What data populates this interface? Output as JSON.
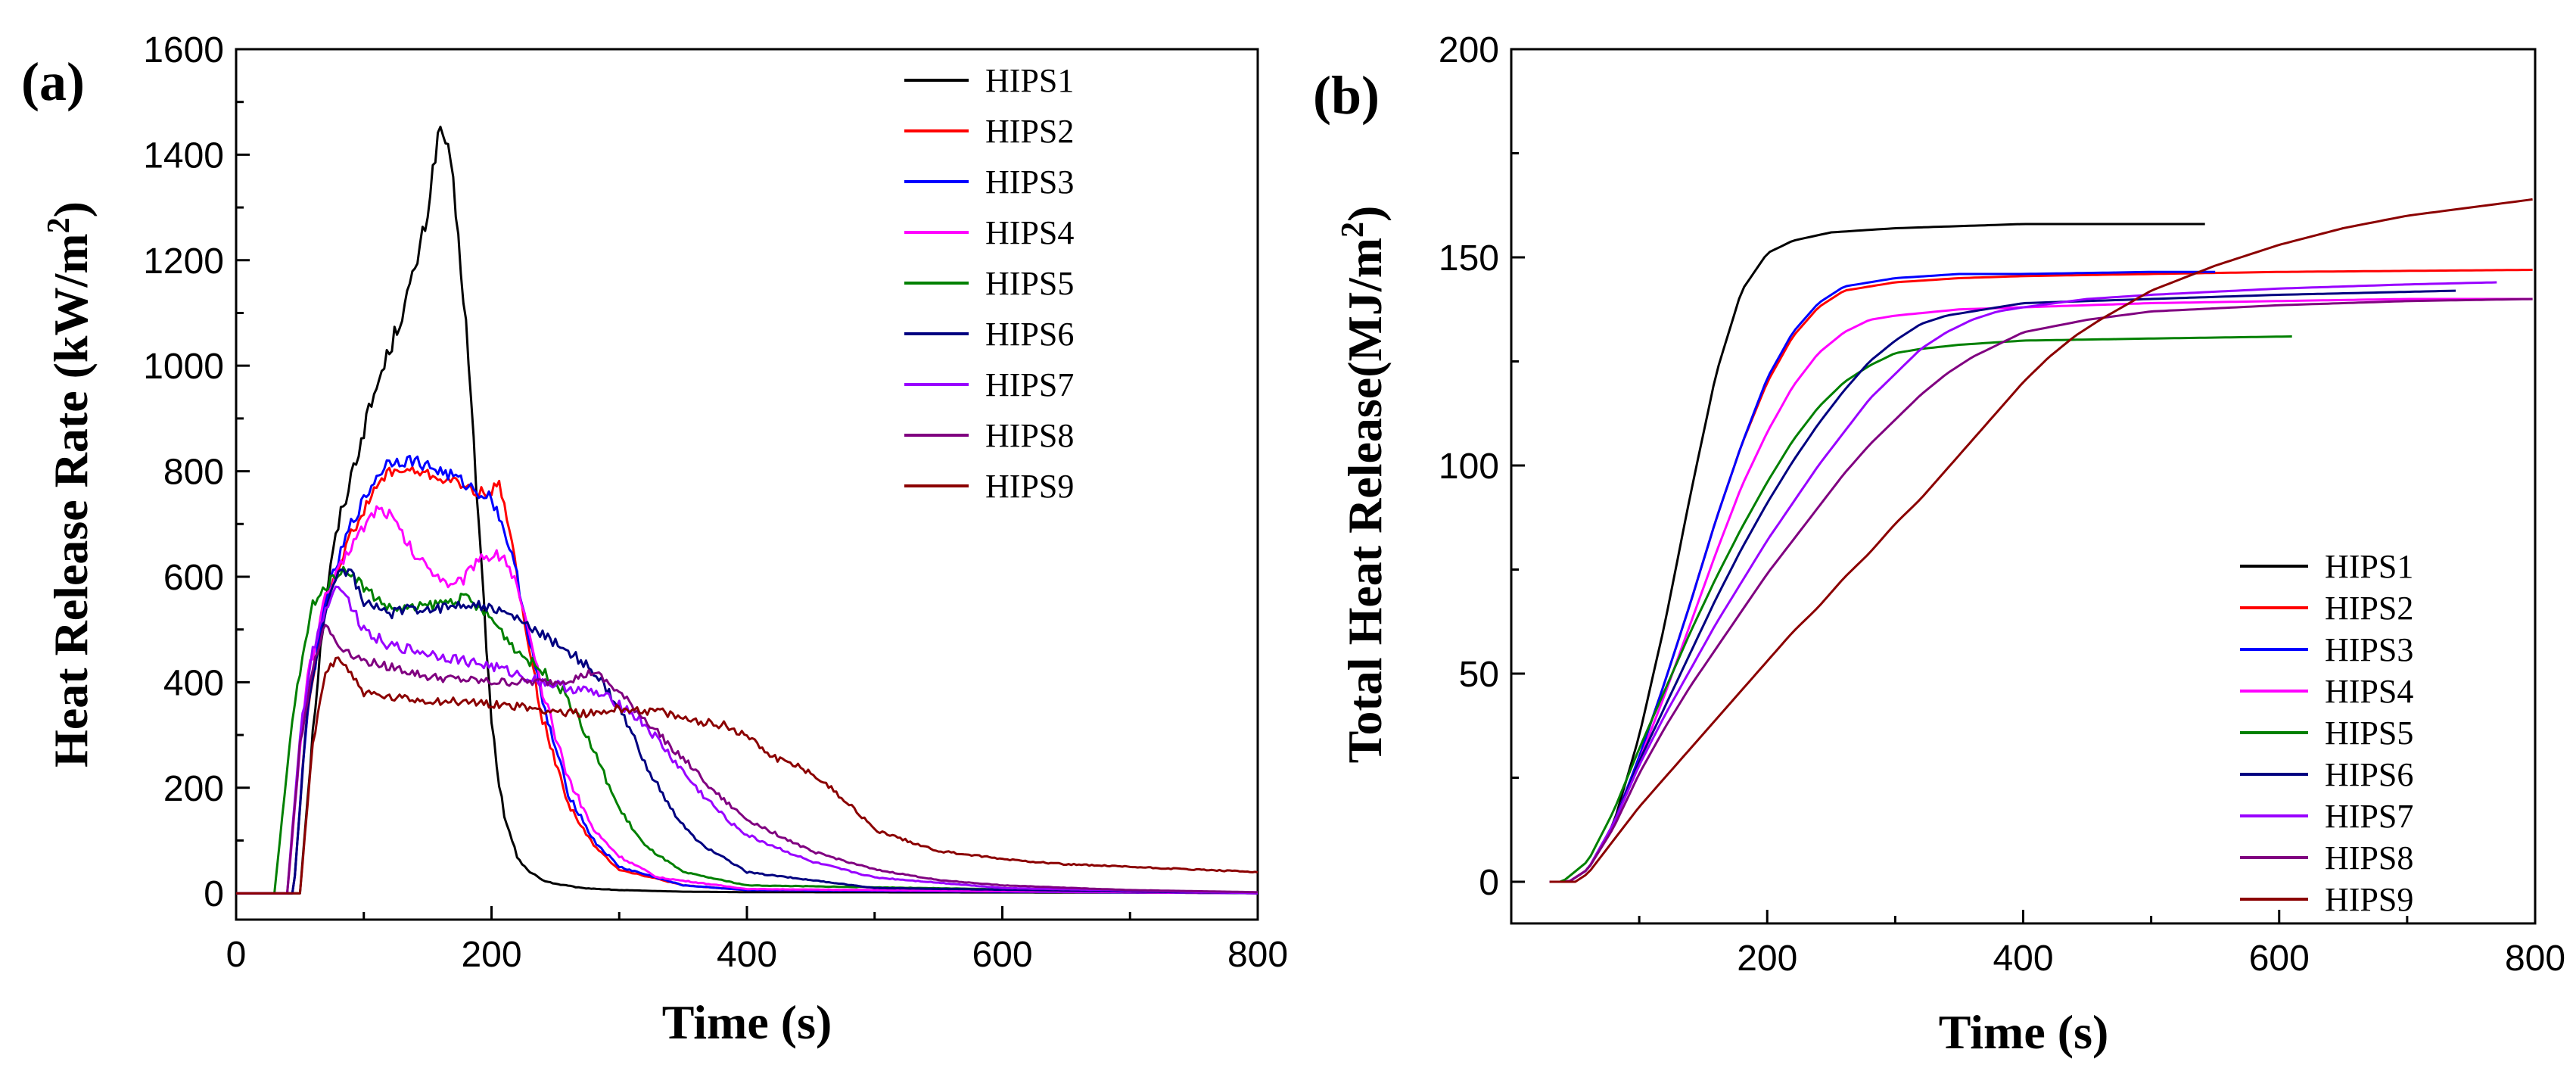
{
  "chart_data": [
    {
      "type": "line",
      "panel_label": "(a)",
      "xlabel": "Time (s)",
      "ylabel": "Heat Release Rate (kW/m",
      "ylabel_sup": "2",
      "ylabel_close": ")",
      "xlim": [
        0,
        800
      ],
      "ylim": [
        -50,
        1600
      ],
      "xticks": [
        0,
        200,
        400,
        600,
        800
      ],
      "yticks": [
        0,
        200,
        400,
        600,
        800,
        1000,
        1200,
        1400,
        1600
      ],
      "legend_position": "top-right",
      "series": [
        {
          "name": "HIPS1",
          "color": "#000000",
          "noise": 18,
          "x": [
            0,
            40,
            50,
            60,
            70,
            80,
            90,
            100,
            110,
            120,
            130,
            140,
            150,
            155,
            160,
            165,
            170,
            180,
            190,
            200,
            210,
            220,
            230,
            240,
            250,
            270,
            300,
            350,
            400,
            800
          ],
          "y": [
            0,
            0,
            0,
            310,
            560,
            700,
            790,
            880,
            960,
            1030,
            1100,
            1180,
            1290,
            1390,
            1450,
            1420,
            1340,
            1080,
            700,
            320,
            140,
            70,
            40,
            25,
            18,
            10,
            6,
            3,
            2,
            1
          ]
        },
        {
          "name": "HIPS2",
          "color": "#ff0000",
          "noise": 10,
          "x": [
            0,
            45,
            55,
            70,
            90,
            110,
            120,
            140,
            170,
            190,
            200,
            205,
            210,
            215,
            225,
            240,
            260,
            280,
            300,
            350,
            400,
            800
          ],
          "y": [
            0,
            0,
            330,
            560,
            680,
            770,
            800,
            800,
            780,
            760,
            760,
            780,
            740,
            680,
            520,
            330,
            170,
            90,
            45,
            15,
            6,
            0
          ]
        },
        {
          "name": "HIPS3",
          "color": "#0000ff",
          "noise": 12,
          "x": [
            0,
            45,
            55,
            70,
            90,
            110,
            120,
            140,
            170,
            190,
            200,
            210,
            220,
            230,
            240,
            260,
            280,
            300,
            350,
            400,
            800
          ],
          "y": [
            0,
            0,
            330,
            560,
            700,
            790,
            820,
            820,
            790,
            760,
            750,
            690,
            600,
            480,
            360,
            190,
            100,
            50,
            15,
            6,
            0
          ]
        },
        {
          "name": "HIPS4",
          "color": "#ff00ff",
          "noise": 12,
          "x": [
            0,
            40,
            55,
            70,
            90,
            110,
            120,
            140,
            160,
            170,
            180,
            190,
            200,
            210,
            220,
            230,
            240,
            260,
            280,
            300,
            330,
            400,
            800
          ],
          "y": [
            0,
            0,
            400,
            560,
            660,
            730,
            720,
            640,
            600,
            580,
            600,
            640,
            640,
            640,
            580,
            480,
            380,
            220,
            120,
            70,
            30,
            8,
            0
          ]
        },
        {
          "name": "HIPS5",
          "color": "#008000",
          "noise": 10,
          "x": [
            0,
            30,
            45,
            60,
            80,
            90,
            100,
            120,
            140,
            160,
            180,
            200,
            220,
            240,
            250,
            260,
            280,
            300,
            320,
            350,
            400,
            800
          ],
          "y": [
            0,
            0,
            350,
            550,
            610,
            610,
            580,
            540,
            540,
            550,
            560,
            520,
            460,
            420,
            400,
            370,
            270,
            160,
            90,
            40,
            15,
            0
          ]
        },
        {
          "name": "HIPS6",
          "color": "#000080",
          "noise": 10,
          "x": [
            0,
            45,
            55,
            70,
            80,
            90,
            100,
            120,
            140,
            160,
            180,
            200,
            220,
            240,
            260,
            280,
            300,
            320,
            340,
            360,
            400,
            500,
            800
          ],
          "y": [
            0,
            0,
            330,
            540,
            610,
            610,
            550,
            530,
            540,
            540,
            550,
            540,
            520,
            490,
            460,
            420,
            350,
            250,
            160,
            100,
            40,
            10,
            0
          ]
        },
        {
          "name": "HIPS7",
          "color": "#9900ff",
          "noise": 10,
          "x": [
            0,
            40,
            50,
            60,
            70,
            80,
            100,
            120,
            140,
            160,
            200,
            240,
            260,
            280,
            300,
            320,
            340,
            360,
            380,
            400,
            450,
            500,
            600,
            800
          ],
          "y": [
            0,
            0,
            300,
            460,
            540,
            590,
            500,
            470,
            460,
            450,
            430,
            400,
            390,
            380,
            360,
            320,
            260,
            200,
            150,
            110,
            60,
            30,
            10,
            0
          ]
        },
        {
          "name": "HIPS8",
          "color": "#800080",
          "noise": 8,
          "x": [
            0,
            40,
            50,
            60,
            70,
            80,
            100,
            120,
            150,
            200,
            220,
            250,
            270,
            280,
            290,
            300,
            320,
            340,
            360,
            380,
            400,
            450,
            500,
            550,
            600,
            700,
            800
          ],
          "y": [
            0,
            0,
            280,
            430,
            510,
            470,
            440,
            430,
            410,
            400,
            400,
            400,
            410,
            420,
            400,
            380,
            330,
            280,
            230,
            180,
            140,
            80,
            45,
            25,
            15,
            6,
            2
          ]
        },
        {
          "name": "HIPS9",
          "color": "#8b0000",
          "noise": 8,
          "x": [
            0,
            50,
            60,
            70,
            80,
            100,
            120,
            150,
            200,
            250,
            280,
            300,
            330,
            350,
            380,
            400,
            420,
            450,
            480,
            500,
            550,
            600,
            650,
            700,
            800
          ],
          "y": [
            0,
            0,
            280,
            420,
            450,
            380,
            370,
            365,
            360,
            345,
            340,
            350,
            345,
            330,
            320,
            300,
            260,
            230,
            170,
            120,
            80,
            65,
            55,
            50,
            40
          ]
        }
      ]
    },
    {
      "type": "line",
      "panel_label": "(b)",
      "xlabel": "Time (s)",
      "ylabel": "Total Heat Release(MJ/m",
      "ylabel_sup": "2",
      "ylabel_close": ")",
      "xlim": [
        0,
        800
      ],
      "ylim": [
        -10,
        200
      ],
      "xticks": [
        200,
        400,
        600,
        800
      ],
      "yticks": [
        0,
        50,
        100,
        150,
        200
      ],
      "legend_position": "bottom-right",
      "series": [
        {
          "name": "HIPS1",
          "color": "#000000",
          "noise": 0,
          "x": [
            30,
            45,
            60,
            80,
            100,
            120,
            140,
            160,
            180,
            200,
            220,
            250,
            300,
            400,
            545
          ],
          "y": [
            0,
            0,
            3,
            14,
            35,
            62,
            93,
            122,
            142,
            151,
            154,
            156,
            157,
            158,
            158
          ]
        },
        {
          "name": "HIPS2",
          "color": "#ff0000",
          "noise": 0,
          "x": [
            30,
            45,
            60,
            80,
            100,
            120,
            140,
            160,
            180,
            200,
            220,
            240,
            260,
            300,
            350,
            400,
            500,
            600,
            800
          ],
          "y": [
            0,
            0,
            3,
            14,
            30,
            48,
            67,
            87,
            105,
            120,
            131,
            138,
            142,
            144,
            145,
            145.5,
            146,
            146.5,
            147
          ]
        },
        {
          "name": "HIPS3",
          "color": "#0000ff",
          "noise": 0,
          "x": [
            30,
            45,
            60,
            80,
            100,
            120,
            140,
            160,
            180,
            200,
            220,
            240,
            260,
            300,
            350,
            400,
            500,
            550
          ],
          "y": [
            0,
            0,
            3,
            14,
            30,
            48,
            67,
            87,
            105,
            121,
            132,
            139,
            143,
            145,
            146,
            146,
            146.5,
            146.5
          ]
        },
        {
          "name": "HIPS4",
          "color": "#ff00ff",
          "noise": 0,
          "x": [
            30,
            45,
            60,
            80,
            100,
            120,
            140,
            160,
            180,
            200,
            220,
            240,
            260,
            280,
            300,
            350,
            400,
            500,
            600,
            700,
            800
          ],
          "y": [
            0,
            0,
            3,
            14,
            29,
            45,
            62,
            79,
            95,
            108,
            119,
            127,
            132,
            135,
            136,
            137.5,
            138,
            139,
            139.5,
            140,
            140
          ]
        },
        {
          "name": "HIPS5",
          "color": "#008000",
          "noise": 0,
          "x": [
            30,
            40,
            60,
            80,
            100,
            120,
            140,
            160,
            180,
            200,
            220,
            240,
            260,
            280,
            300,
            320,
            350,
            400,
            500,
            610
          ],
          "y": [
            0,
            0,
            5,
            17,
            32,
            46,
            60,
            73,
            85,
            96,
            106,
            114,
            120,
            124,
            127,
            128,
            129,
            130,
            130.5,
            131
          ]
        },
        {
          "name": "HIPS6",
          "color": "#000080",
          "noise": 0,
          "x": [
            30,
            45,
            60,
            80,
            100,
            120,
            140,
            160,
            180,
            200,
            220,
            240,
            260,
            280,
            300,
            320,
            340,
            360,
            380,
            400,
            500,
            600,
            740
          ],
          "y": [
            0,
            0,
            3,
            14,
            29,
            42,
            55,
            68,
            80,
            91,
            101,
            110,
            118,
            125,
            130,
            134,
            136,
            137,
            138,
            139,
            140,
            141,
            142
          ]
        },
        {
          "name": "HIPS7",
          "color": "#9900ff",
          "noise": 0,
          "x": [
            30,
            45,
            60,
            80,
            100,
            120,
            140,
            160,
            180,
            200,
            220,
            240,
            260,
            280,
            300,
            320,
            340,
            360,
            380,
            400,
            450,
            500,
            600,
            700,
            770
          ],
          "y": [
            0,
            0,
            3,
            14,
            28,
            40,
            51,
            62,
            72,
            82,
            91,
            100,
            108,
            116,
            122,
            128,
            132,
            135,
            137,
            138,
            140,
            141,
            142.5,
            143.5,
            144
          ]
        },
        {
          "name": "HIPS8",
          "color": "#800080",
          "noise": 0,
          "x": [
            30,
            45,
            60,
            80,
            100,
            120,
            140,
            160,
            180,
            200,
            220,
            240,
            260,
            280,
            300,
            320,
            340,
            360,
            380,
            400,
            450,
            500,
            600,
            700,
            800
          ],
          "y": [
            0,
            0,
            3,
            13,
            26,
            37,
            47,
            56,
            65,
            74,
            82,
            90,
            98,
            105,
            111,
            117,
            122,
            126,
            129,
            132,
            135,
            137,
            138.5,
            139.5,
            140
          ]
        },
        {
          "name": "HIPS9",
          "color": "#8b0000",
          "noise": 0,
          "x": [
            30,
            50,
            60,
            80,
            100,
            120,
            140,
            160,
            180,
            200,
            220,
            240,
            260,
            280,
            300,
            320,
            340,
            360,
            380,
            400,
            420,
            440,
            460,
            500,
            550,
            600,
            650,
            700,
            750,
            800
          ],
          "y": [
            0,
            0,
            2,
            10,
            18,
            25,
            32,
            39,
            46,
            53,
            60,
            66,
            73,
            79,
            86,
            92,
            99,
            106,
            113,
            120,
            126,
            131,
            135,
            142,
            148,
            153,
            157,
            160,
            162,
            164
          ]
        }
      ]
    }
  ]
}
